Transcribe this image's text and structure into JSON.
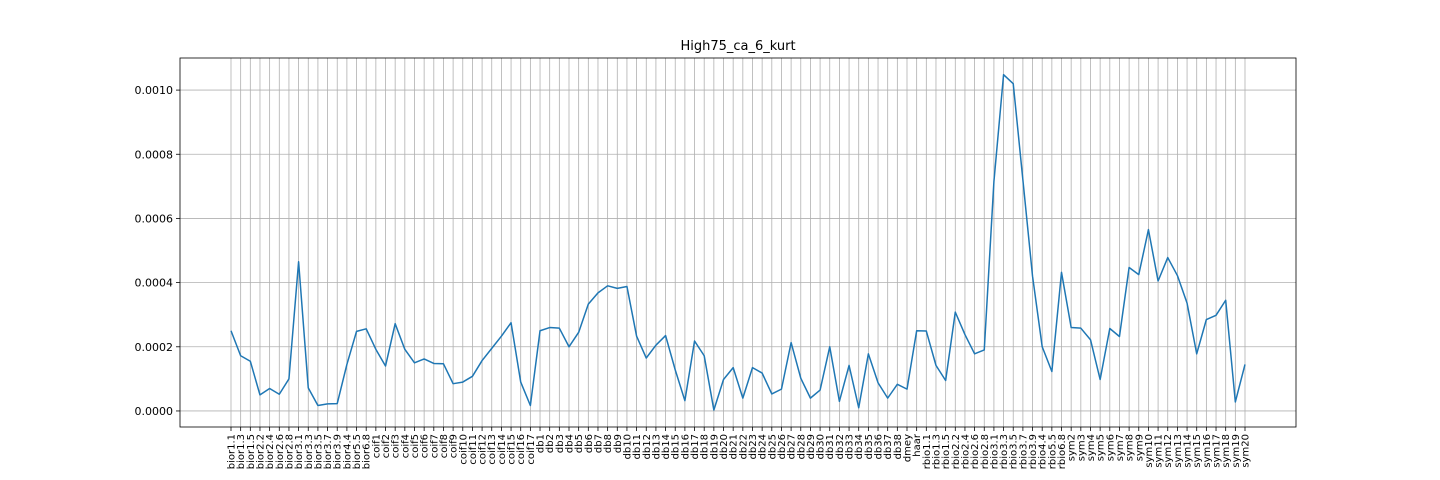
{
  "chart_data": {
    "type": "line",
    "title": "High75_ca_6_kurt",
    "xlabel": "",
    "ylabel": "",
    "ylim": [
      -5e-05,
      0.0011
    ],
    "yticks": [
      0.0,
      0.0002,
      0.0004,
      0.0006,
      0.0008,
      0.001
    ],
    "ytick_labels": [
      "0.0000",
      "0.0002",
      "0.0004",
      "0.0006",
      "0.0008",
      "0.0010"
    ],
    "grid": true,
    "line_color": "#1f77b4",
    "categories": [
      "bior1.1",
      "bior1.3",
      "bior1.5",
      "bior2.2",
      "bior2.4",
      "bior2.6",
      "bior2.8",
      "bior3.1",
      "bior3.3",
      "bior3.5",
      "bior3.7",
      "bior3.9",
      "bior4.4",
      "bior5.5",
      "bior6.8",
      "coif1",
      "coif2",
      "coif3",
      "coif4",
      "coif5",
      "coif6",
      "coif7",
      "coif8",
      "coif9",
      "coif10",
      "coif11",
      "coif12",
      "coif13",
      "coif14",
      "coif15",
      "coif16",
      "coif17",
      "db1",
      "db2",
      "db3",
      "db4",
      "db5",
      "db6",
      "db7",
      "db8",
      "db9",
      "db10",
      "db11",
      "db12",
      "db13",
      "db14",
      "db15",
      "db16",
      "db17",
      "db18",
      "db19",
      "db20",
      "db21",
      "db22",
      "db23",
      "db24",
      "db25",
      "db26",
      "db27",
      "db28",
      "db29",
      "db30",
      "db31",
      "db32",
      "db33",
      "db34",
      "db35",
      "db36",
      "db37",
      "db38",
      "dmey",
      "haar",
      "rbio1.1",
      "rbio1.3",
      "rbio1.5",
      "rbio2.2",
      "rbio2.4",
      "rbio2.6",
      "rbio2.8",
      "rbio3.1",
      "rbio3.3",
      "rbio3.5",
      "rbio3.7",
      "rbio3.9",
      "rbio4.4",
      "rbio5.5",
      "rbio6.8",
      "sym2",
      "sym3",
      "sym4",
      "sym5",
      "sym6",
      "sym7",
      "sym8",
      "sym9",
      "sym10",
      "sym11",
      "sym12",
      "sym13",
      "sym14",
      "sym15",
      "sym16",
      "sym17",
      "sym18",
      "sym19",
      "sym20"
    ],
    "values": [
      0.00025,
      0.000172,
      0.000155,
      5e-05,
      7e-05,
      5.2e-05,
      0.0001,
      0.000465,
      7.2e-05,
      1.7e-05,
      2.2e-05,
      2.3e-05,
      0.000145,
      0.000248,
      0.000256,
      0.000192,
      0.00014,
      0.000272,
      0.000192,
      0.00015,
      0.000162,
      0.000148,
      0.000147,
      8.5e-05,
      9e-05,
      0.000108,
      0.000157,
      0.000195,
      0.000233,
      0.000275,
      9e-05,
      1.7e-05,
      0.00025,
      0.00026,
      0.000258,
      0.0002,
      0.000245,
      0.000333,
      0.000368,
      0.00039,
      0.000382,
      0.000388,
      0.000233,
      0.000165,
      0.000205,
      0.000235,
      0.000128,
      3.2e-05,
      0.000218,
      0.000172,
      3e-06,
      9.8e-05,
      0.000135,
      4e-05,
      0.000135,
      0.000118,
      5.3e-05,
      6.8e-05,
      0.000213,
      0.000102,
      4e-05,
      6.5e-05,
      0.0002,
      3e-05,
      0.000142,
      1e-05,
      0.000178,
      8.8e-05,
      4e-05,
      8.3e-05,
      6.8e-05,
      0.00025,
      0.000249,
      0.000142,
      9.5e-05,
      0.000308,
      0.000238,
      0.000178,
      0.00019,
      0.000715,
      0.001048,
      0.00102,
      0.00072,
      0.00042,
      0.0002,
      0.000123,
      0.000432,
      0.00026,
      0.000258,
      0.000222,
      9.8e-05,
      0.000257,
      0.000232,
      0.000447,
      0.000425,
      0.000565,
      0.000405,
      0.000478,
      0.000422,
      0.000336,
      0.000178,
      0.000285,
      0.000298,
      0.000345,
      2.8e-05,
      0.000145
    ]
  }
}
